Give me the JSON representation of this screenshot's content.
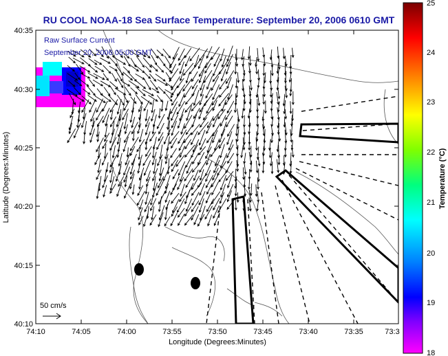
{
  "title": "RU COOL  NOAA-18  Sea Surface Temperature:  September 20, 2006 0610 GMT",
  "legend": {
    "line1": "Raw Surface Current",
    "line2": "September 20, 2006 05:00 GMT"
  },
  "scale_label": "50 cm/s",
  "xlabel": "Longitude (Degrees:Minutes)",
  "ylabel": "Latitude (Degrees:Minutes)",
  "colorbar": {
    "label": "Temperature (°C)",
    "ticks": [
      "25",
      "24",
      "23",
      "22",
      "21",
      "20",
      "19",
      "18"
    ],
    "gradient": [
      "#7a0000",
      "#ff0000",
      "#ff8c00",
      "#ffff00",
      "#7fff00",
      "#00ff7f",
      "#00ffff",
      "#0080ff",
      "#0000ff",
      "#8000ff",
      "#ff00ff"
    ]
  },
  "chart_data": {
    "type": "map",
    "x_ticks": [
      "74:10",
      "74:05",
      "74:00",
      "73:55",
      "73:50",
      "73:45",
      "73:40",
      "73:35",
      "73:3"
    ],
    "y_ticks": [
      "40:35",
      "40:30",
      "40:25",
      "40:20",
      "40:15",
      "40:10"
    ],
    "xlim_minutes_west": [
      4450,
      4410
    ],
    "ylim_minutes_north": [
      2410,
      2435
    ],
    "temperature_range_c": [
      18,
      25
    ],
    "colors": {
      "frame": "#000000",
      "vector": "#000000",
      "sst_warm": "#00ffff",
      "sst_mid": "#0000ff",
      "sst_cold": "#ff00ff"
    }
  }
}
